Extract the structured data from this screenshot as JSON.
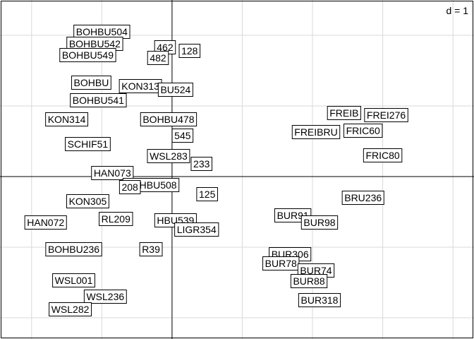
{
  "chart_data": {
    "type": "scatter",
    "scale_label": "d = 1",
    "xlim": [
      -2.45,
      4.3
    ],
    "ylim": [
      -2.3,
      2.5
    ],
    "x_grid": [
      -2,
      -1,
      0,
      1,
      2,
      3,
      4
    ],
    "y_grid": [
      -2,
      -1,
      0,
      1,
      2
    ],
    "points": [
      {
        "label": "BOHBU504",
        "x": -1.0,
        "y": 2.05
      },
      {
        "label": "BOHBU542",
        "x": -1.1,
        "y": 1.88
      },
      {
        "label": "462",
        "x": -0.1,
        "y": 1.83
      },
      {
        "label": "128",
        "x": 0.25,
        "y": 1.78
      },
      {
        "label": "BOHBU549",
        "x": -1.2,
        "y": 1.72
      },
      {
        "label": "482",
        "x": -0.2,
        "y": 1.68
      },
      {
        "label": "BOHBU",
        "x": -1.15,
        "y": 1.33
      },
      {
        "label": "KON313",
        "x": -0.45,
        "y": 1.28
      },
      {
        "label": "BU524",
        "x": 0.05,
        "y": 1.23
      },
      {
        "label": "BOHBU541",
        "x": -1.05,
        "y": 1.08
      },
      {
        "label": "BOHBU478",
        "x": -0.05,
        "y": 0.81
      },
      {
        "label": "KON314",
        "x": -1.5,
        "y": 0.81
      },
      {
        "label": "545",
        "x": 0.15,
        "y": 0.58
      },
      {
        "label": "SCHIF51",
        "x": -1.2,
        "y": 0.46
      },
      {
        "label": "WSL283",
        "x": -0.05,
        "y": 0.29
      },
      {
        "label": "233",
        "x": 0.42,
        "y": 0.18
      },
      {
        "label": "HAN073",
        "x": -0.85,
        "y": 0.05
      },
      {
        "label": "BOHBU508",
        "x": -0.3,
        "y": -0.12
      },
      {
        "label": "208",
        "x": -0.6,
        "y": -0.15
      },
      {
        "label": "125",
        "x": 0.5,
        "y": -0.25
      },
      {
        "label": "KON305",
        "x": -1.2,
        "y": -0.35
      },
      {
        "label": "HAN072",
        "x": -1.8,
        "y": -0.65
      },
      {
        "label": "RL209",
        "x": -0.8,
        "y": -0.6
      },
      {
        "label": "HBU539",
        "x": 0.05,
        "y": -0.62
      },
      {
        "label": "LIGR354",
        "x": 0.35,
        "y": -0.75
      },
      {
        "label": "BOHBU236",
        "x": -1.4,
        "y": -1.03
      },
      {
        "label": "R39",
        "x": -0.3,
        "y": -1.03
      },
      {
        "label": "WSL001",
        "x": -1.4,
        "y": -1.47
      },
      {
        "label": "WSL236",
        "x": -0.95,
        "y": -1.7
      },
      {
        "label": "WSL282",
        "x": -1.45,
        "y": -1.88
      },
      {
        "label": "FREIB",
        "x": 2.45,
        "y": 0.9
      },
      {
        "label": "FREI276",
        "x": 3.05,
        "y": 0.87
      },
      {
        "label": "FRIC60",
        "x": 2.72,
        "y": 0.65
      },
      {
        "label": "FREIBRU",
        "x": 2.05,
        "y": 0.63
      },
      {
        "label": "FRIC80",
        "x": 3.0,
        "y": 0.3
      },
      {
        "label": "BRU236",
        "x": 2.72,
        "y": -0.3
      },
      {
        "label": "BUR91",
        "x": 1.72,
        "y": -0.55
      },
      {
        "label": "BUR98",
        "x": 2.1,
        "y": -0.65
      },
      {
        "label": "BUR306",
        "x": 1.68,
        "y": -1.1
      },
      {
        "label": "BUR78",
        "x": 1.55,
        "y": -1.23
      },
      {
        "label": "BUR74",
        "x": 2.05,
        "y": -1.33
      },
      {
        "label": "BUR88",
        "x": 1.95,
        "y": -1.48
      },
      {
        "label": "BUR318",
        "x": 2.1,
        "y": -1.75
      }
    ]
  }
}
